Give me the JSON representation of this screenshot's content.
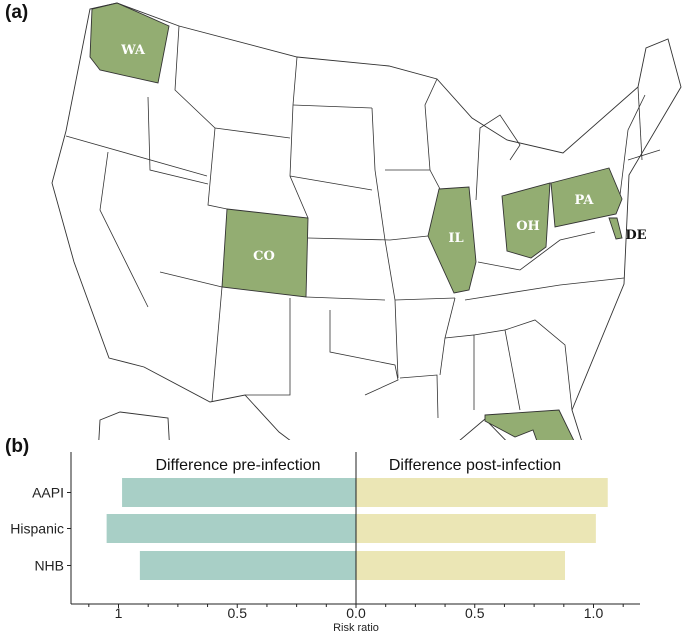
{
  "panel_a": {
    "label": "(a)",
    "highlight_color": "#93ad72",
    "states": [
      {
        "abbr": "WA"
      },
      {
        "abbr": "CO"
      },
      {
        "abbr": "IL"
      },
      {
        "abbr": "OH"
      },
      {
        "abbr": "PA"
      },
      {
        "abbr": "DE"
      },
      {
        "abbr": "FL"
      }
    ]
  },
  "panel_b": {
    "label": "(b)"
  },
  "chart_data": {
    "type": "bar",
    "orientation": "horizontal",
    "categories": [
      "AAPI",
      "Hispanic",
      "NHB"
    ],
    "series": [
      {
        "name": "Difference pre-infection",
        "values": [
          0.985,
          1.05,
          0.91
        ],
        "color": "#a8cfc6",
        "direction": "left"
      },
      {
        "name": "Difference post-infection",
        "values": [
          1.06,
          1.01,
          0.88
        ],
        "color": "#ebe6b5",
        "direction": "right"
      }
    ],
    "xlabel": "Risk ratio",
    "xlim": [
      -1.2,
      1.2
    ],
    "tick_labels_left": [
      "1",
      "0.5"
    ],
    "tick_labels_right": [
      "0.0",
      "0.5",
      "1.0"
    ],
    "grid": false
  }
}
